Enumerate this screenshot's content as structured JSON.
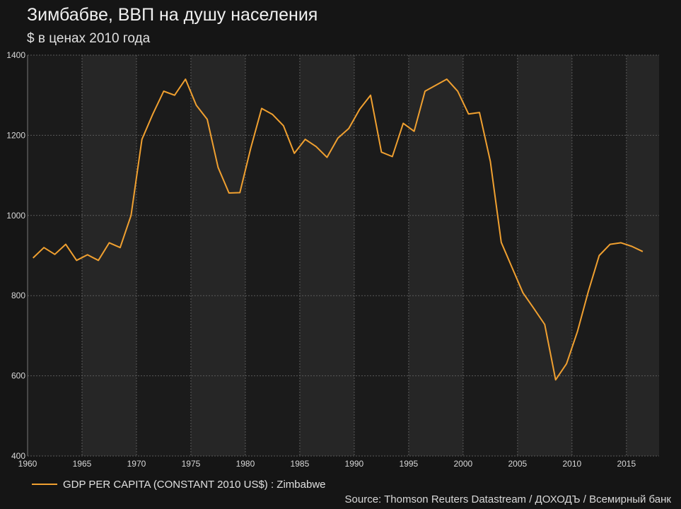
{
  "header": {
    "title": "Зимбабве, ВВП на душу населения",
    "subtitle": "$ в ценах 2010 года"
  },
  "source_text": "Source: Thomson Reuters Datastream / ДОХОДЪ / Всемирный банк",
  "colors": {
    "background": "#151515",
    "band_dark": "#1b1b1b",
    "band_light": "#262626",
    "grid": "#5a5a5a",
    "line": "#f0a030",
    "axis_text": "#d8d8d8"
  },
  "chart_data": {
    "type": "line",
    "title": "Зимбабве, ВВП на душу населения",
    "subtitle": "$ в ценах 2010 года",
    "xlabel": "",
    "ylabel": "",
    "xlim": [
      1960,
      2018
    ],
    "ylim": [
      400,
      1400
    ],
    "x_ticks": [
      1960,
      1965,
      1970,
      1975,
      1980,
      1985,
      1990,
      1995,
      2000,
      2005,
      2010,
      2015
    ],
    "y_ticks": [
      400,
      600,
      800,
      1000,
      1200,
      1400
    ],
    "grid": true,
    "legend_position": "bottom-left",
    "series": [
      {
        "name": "GDP PER CAPITA (CONSTANT 2010 US$) : Zimbabwe",
        "x": [
          1960.5,
          1961.5,
          1962.5,
          1963.5,
          1964.5,
          1965.5,
          1966.5,
          1967.5,
          1968.5,
          1969.5,
          1970.5,
          1971.5,
          1972.5,
          1973.5,
          1974.5,
          1975.5,
          1976.5,
          1977.5,
          1978.5,
          1979.5,
          1980.5,
          1981.5,
          1982.5,
          1983.5,
          1984.5,
          1985.5,
          1986.5,
          1987.5,
          1988.5,
          1989.5,
          1990.5,
          1991.5,
          1992.5,
          1993.5,
          1994.5,
          1995.5,
          1996.5,
          1997.5,
          1998.5,
          1999.5,
          2000.5,
          2001.5,
          2002.5,
          2003.5,
          2004.5,
          2005.5,
          2006.5,
          2007.5,
          2008.5,
          2009.5,
          2010.5,
          2011.5,
          2012.5,
          2013.5,
          2014.5,
          2015.5,
          2016.5
        ],
        "values": [
          894,
          920,
          903,
          928,
          888,
          902,
          888,
          932,
          920,
          1000,
          1190,
          1253,
          1310,
          1300,
          1340,
          1275,
          1240,
          1120,
          1056,
          1057,
          1168,
          1267,
          1252,
          1224,
          1155,
          1190,
          1172,
          1145,
          1193,
          1217,
          1265,
          1300,
          1158,
          1147,
          1230,
          1210,
          1310,
          1325,
          1340,
          1310,
          1253,
          1257,
          1135,
          933,
          870,
          807,
          768,
          728,
          590,
          630,
          710,
          810,
          900,
          928,
          932,
          923,
          910
        ]
      }
    ]
  }
}
